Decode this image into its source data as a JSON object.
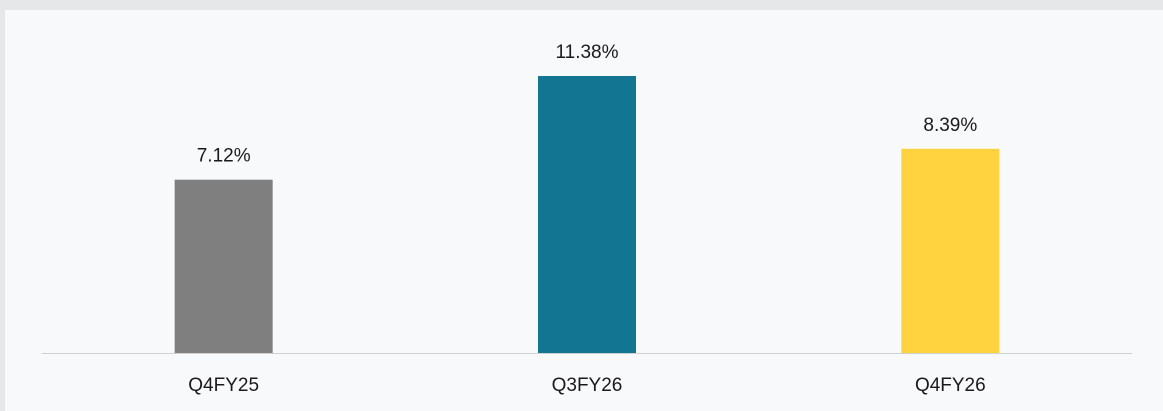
{
  "chart_data": {
    "type": "bar",
    "categories": [
      "Q4FY25",
      "Q3FY26",
      "Q4FY26"
    ],
    "values": [
      7.12,
      11.38,
      8.39
    ],
    "value_labels": [
      "7.12%",
      "11.38%",
      "8.39%"
    ],
    "colors": [
      "#7f7f7f",
      "#127693",
      "#ffd23f"
    ]
  }
}
